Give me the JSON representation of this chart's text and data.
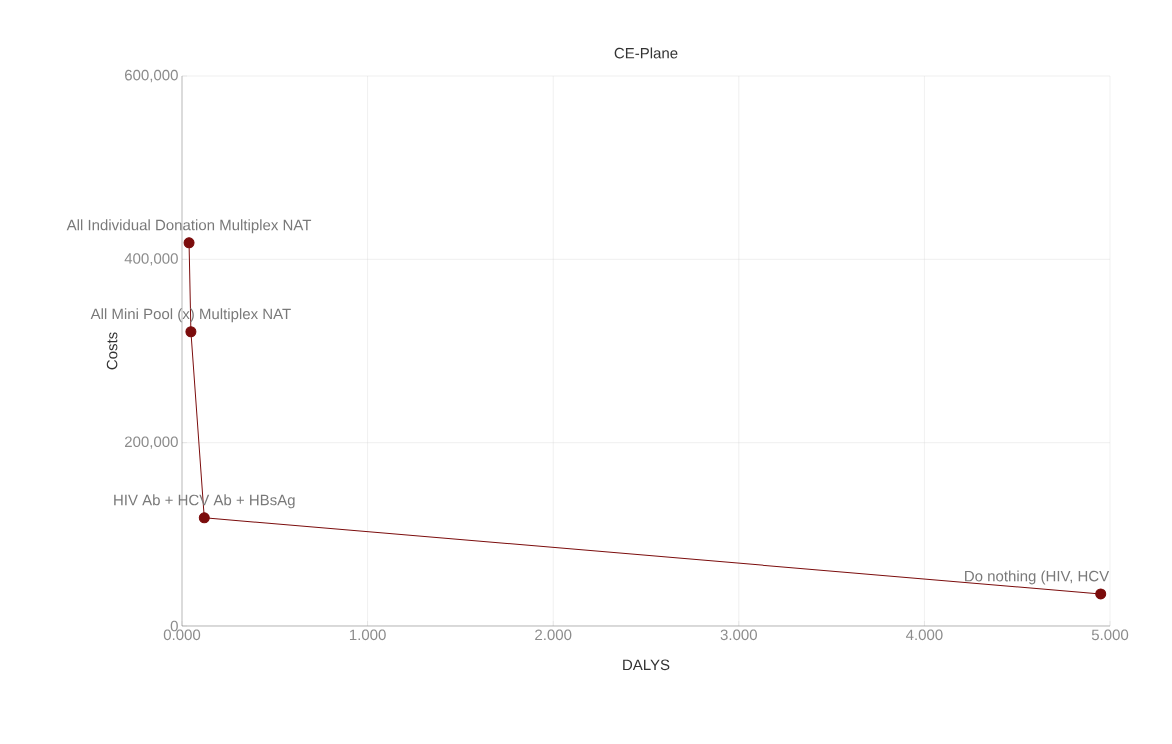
{
  "chart_data": {
    "type": "line",
    "title": "CE-Plane",
    "xlabel": "DALYS",
    "ylabel": "Costs",
    "x": [
      0.038,
      0.048,
      0.12,
      4.95
    ],
    "series": [
      {
        "color": "#7b0c0c",
        "values": [
          418000,
          321000,
          118000,
          35000
        ]
      }
    ],
    "annotations": [
      {
        "text": "All Individual Donation Multiplex NAT",
        "x": 0.038,
        "y": 418000
      },
      {
        "text": "All Mini Pool (x) Multiplex NAT",
        "x": 0.048,
        "y": 321000
      },
      {
        "text": "HIV Ab + HCV Ab + HBsAg",
        "x": 0.12,
        "y": 118000
      },
      {
        "text": "Do nothing (HIV, HCV",
        "x": 4.95,
        "y": 35000
      }
    ],
    "xlim": [
      0,
      5
    ],
    "ylim": [
      0,
      600000
    ],
    "xticks": [
      {
        "value": 0,
        "label": "0.000"
      },
      {
        "value": 1,
        "label": "1.000"
      },
      {
        "value": 2,
        "label": "2.000"
      },
      {
        "value": 3,
        "label": "3.000"
      },
      {
        "value": 4,
        "label": "4.000"
      },
      {
        "value": 5,
        "label": "5.000"
      }
    ],
    "yticks": [
      0,
      {
        "value": 200000,
        "label": "200,000"
      },
      {
        "value": 400000,
        "label": "400,000"
      },
      {
        "value": 600000,
        "label": "600,000"
      }
    ],
    "grid": true,
    "marker": "circle",
    "line_style": "solid"
  }
}
